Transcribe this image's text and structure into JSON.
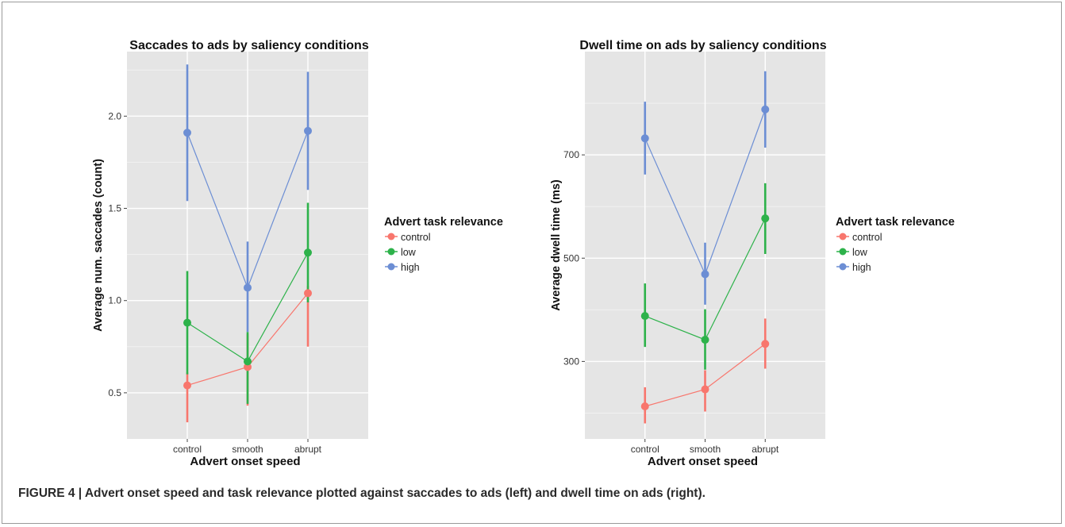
{
  "caption": "FIGURE 4 | Advert onset speed and task relevance plotted against saccades to ads (left) and dwell time on ads (right).",
  "legend_title": "Advert task relevance",
  "colors": {
    "panel_bg": "#E5E5E5",
    "grid_major": "#FFFFFF",
    "grid_minor": "#F2F2F2",
    "control": "#F8766D",
    "low": "#2DB24A",
    "high": "#6C8ED4"
  },
  "chart_data": [
    {
      "type": "line",
      "title": "Saccades to ads by saliency conditions",
      "xlabel": "Advert onset speed",
      "ylabel": "Average num. saccades (count)",
      "categories": [
        "control",
        "smooth",
        "abrupt"
      ],
      "ylim": [
        0.25,
        2.35
      ],
      "yticks": [
        0.5,
        1.0,
        1.5,
        2.0
      ],
      "ytick_labels": [
        "0.5",
        "1.0",
        "1.5",
        "2.0"
      ],
      "grid": true,
      "legend_title": "Advert task relevance",
      "legend_position": "right",
      "series": [
        {
          "name": "control",
          "color": "#F8766D",
          "values": [
            0.54,
            0.64,
            1.04
          ],
          "lower": [
            0.34,
            0.43,
            0.75
          ],
          "upper": [
            0.61,
            0.82,
            1.08
          ]
        },
        {
          "name": "low",
          "color": "#2DB24A",
          "values": [
            0.88,
            0.67,
            1.26
          ],
          "lower": [
            0.6,
            0.44,
            0.99
          ],
          "upper": [
            1.16,
            0.83,
            1.53
          ]
        },
        {
          "name": "high",
          "color": "#6C8ED4",
          "values": [
            1.91,
            1.07,
            1.92
          ],
          "lower": [
            1.54,
            0.83,
            1.6
          ],
          "upper": [
            2.28,
            1.32,
            2.24
          ]
        }
      ]
    },
    {
      "type": "line",
      "title": "Dwell time on ads by saliency conditions",
      "xlabel": "Advert onset speed",
      "ylabel": "Average dwell time (ms)",
      "categories": [
        "control",
        "smooth",
        "abrupt"
      ],
      "ylim": [
        150,
        900
      ],
      "yticks": [
        300,
        500,
        700
      ],
      "ytick_labels": [
        "300",
        "500",
        "700"
      ],
      "grid": true,
      "legend_title": "Advert task relevance",
      "legend_position": "right",
      "series": [
        {
          "name": "control",
          "color": "#F8766D",
          "values": [
            213,
            246,
            334
          ],
          "lower": [
            180,
            203,
            286
          ],
          "upper": [
            250,
            283,
            383
          ]
        },
        {
          "name": "low",
          "color": "#2DB24A",
          "values": [
            388,
            342,
            577
          ],
          "lower": [
            328,
            284,
            508
          ],
          "upper": [
            451,
            401,
            645
          ]
        },
        {
          "name": "high",
          "color": "#6C8ED4",
          "values": [
            732,
            469,
            788
          ],
          "lower": [
            662,
            410,
            714
          ],
          "upper": [
            803,
            530,
            862
          ]
        }
      ]
    }
  ]
}
